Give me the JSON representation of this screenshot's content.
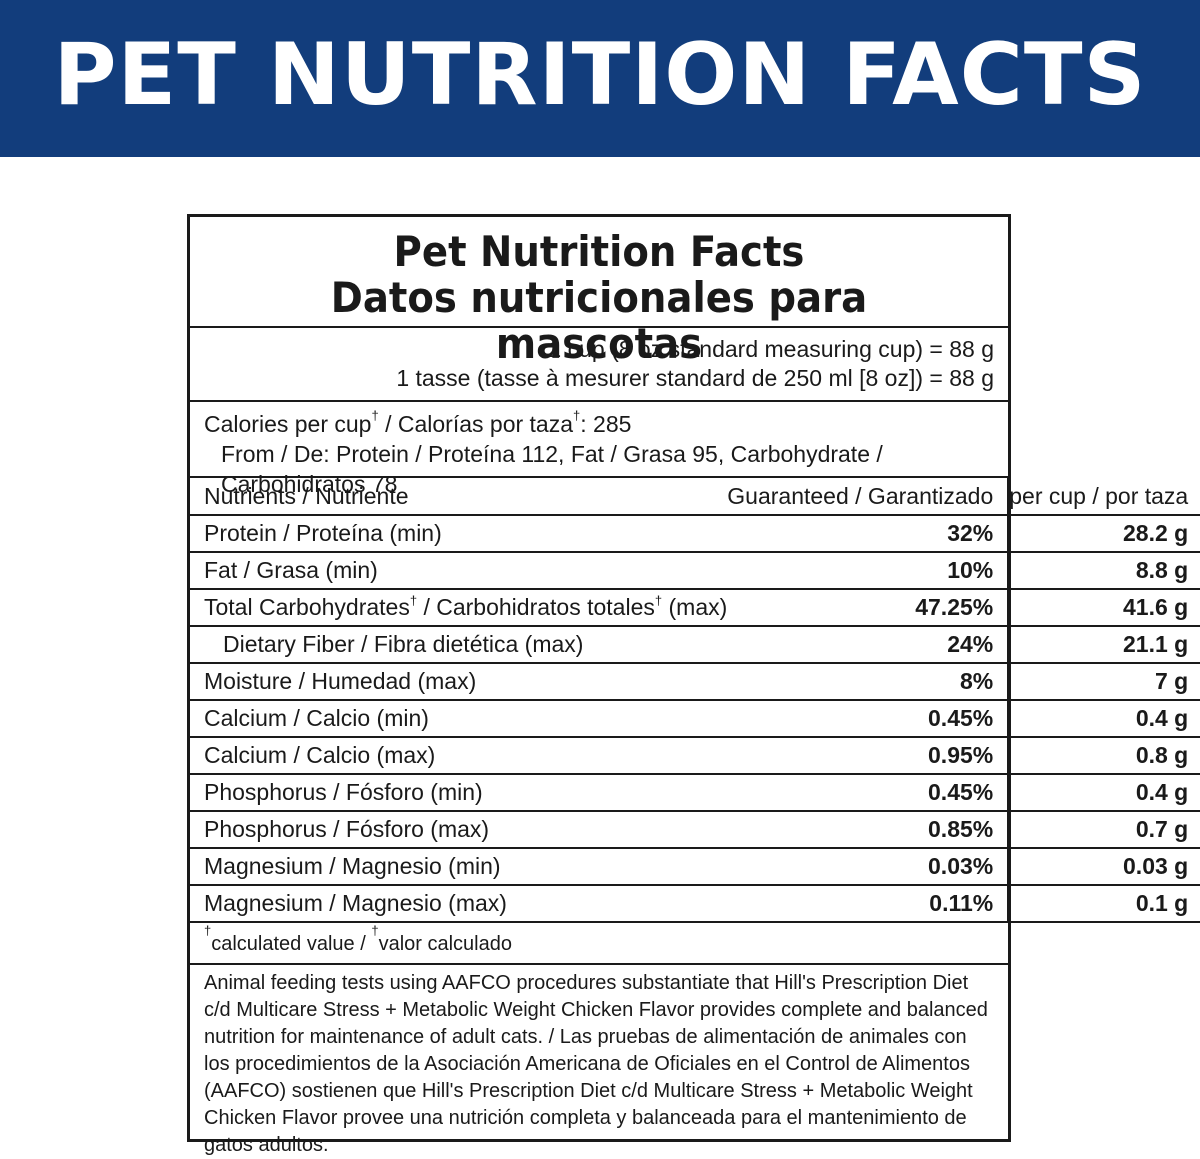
{
  "banner": {
    "title": "PET NUTRITION FACTS"
  },
  "panel": {
    "title_en": "Pet Nutrition Facts",
    "title_es": "Datos nutricionales para mascotas",
    "serving_1": "1 cup (8 oz standard measuring cup) = 88 g",
    "serving_2": "1 tasse (tasse à mesurer standard de 250 ml [8 oz]) = 88 g",
    "calories_label_en": "Calories per cup",
    "calories_sep": " / Calorías por taza",
    "calories_value": ": 285",
    "calories_from": "From / De: Protein / Proteína 112, Fat / Grasa 95, Carbohydrate / Carbohidratos 78",
    "dagger": "†",
    "header": {
      "nutrient": "Nutrients / Nutriente",
      "guaranteed": "Guaranteed / Garantizado",
      "per_cup": "per cup / por taza"
    },
    "rows": [
      {
        "name": "Protein / Proteína (min)",
        "guaranteed": "32%",
        "per_cup": "28.2 g"
      },
      {
        "name": "Fat / Grasa (min)",
        "guaranteed": "10%",
        "per_cup": "8.8 g"
      },
      {
        "name_a": "Total Carbohydrates",
        "name_b": " / Carbohidratos totales",
        "name_c": " (max)",
        "guaranteed": "47.25%",
        "per_cup": "41.6 g"
      },
      {
        "name": "Dietary Fiber / Fibra dietética (max)",
        "guaranteed": "24%",
        "per_cup": "21.1 g"
      },
      {
        "name": "Moisture / Humedad (max)",
        "guaranteed": "8%",
        "per_cup": "7 g"
      },
      {
        "name": "Calcium / Calcio (min)",
        "guaranteed": "0.45%",
        "per_cup": "0.4 g"
      },
      {
        "name": "Calcium / Calcio (max)",
        "guaranteed": "0.95%",
        "per_cup": "0.8 g"
      },
      {
        "name": "Phosphorus / Fósforo (min)",
        "guaranteed": "0.45%",
        "per_cup": "0.4 g"
      },
      {
        "name": "Phosphorus / Fósforo (max)",
        "guaranteed": "0.85%",
        "per_cup": "0.7 g"
      },
      {
        "name": "Magnesium / Magnesio (min)",
        "guaranteed": "0.03%",
        "per_cup": "0.03 g"
      },
      {
        "name": "Magnesium / Magnesio (max)",
        "guaranteed": "0.11%",
        "per_cup": "0.1 g"
      }
    ],
    "footnote_a": "calculated value / ",
    "footnote_b": "valor calculado",
    "statement": "Animal feeding tests using AAFCO procedures substantiate that Hill's Prescription Diet c/d Multicare Stress + Metabolic Weight Chicken Flavor provides complete and balanced nutrition for maintenance of adult cats. / Las pruebas de alimentación de animales con los procedimientos de la Asociación Americana de Oficiales en el Control de Alimentos (AAFCO) sostienen que Hill's Prescription Diet c/d Multicare Stress + Metabolic Weight Chicken Flavor provee una nutrición completa y balanceada para el mantenimiento de gatos adultos."
  },
  "colors": {
    "banner": "#123d7c",
    "text": "#1a1a1a"
  }
}
